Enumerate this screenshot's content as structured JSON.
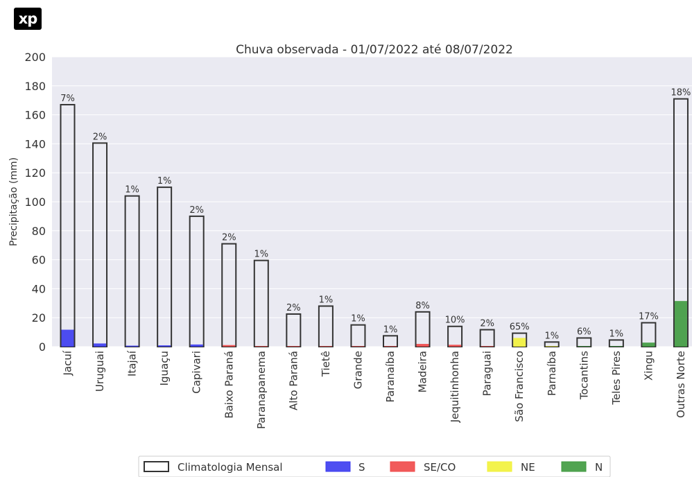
{
  "logo": {
    "text": "xp",
    "icon": "xp-logo-icon"
  },
  "chart_data": {
    "type": "bar",
    "title": "Chuva observada - 01/07/2022 até 08/07/2022",
    "xlabel": "",
    "ylabel": "Precipitação (mm)",
    "ylim": [
      0,
      200
    ],
    "yticks": [
      0,
      20,
      40,
      60,
      80,
      100,
      120,
      140,
      160,
      180,
      200
    ],
    "grid": true,
    "legend_position": "bottom",
    "categories": [
      "Jacuí",
      "Uruguai",
      "Itajaí",
      "Iguaçu",
      "Capivari",
      "Baixo Paraná",
      "Paranapanema",
      "Alto Paraná",
      "Tietê",
      "Grande",
      "Paranaíba",
      "Madeira",
      "Jequitinhonha",
      "Paraguai",
      "São Francisco",
      "Parnaíba",
      "Tocantins",
      "Teles Pires",
      "Xingu",
      "Outras Norte"
    ],
    "climatologia": [
      167,
      140.5,
      104,
      110,
      90,
      71,
      59.5,
      22.5,
      28,
      15,
      7.5,
      24,
      14,
      11.7,
      9.3,
      3.2,
      6,
      4.6,
      16.5,
      171
    ],
    "observed": [
      11.7,
      2.2,
      0.7,
      0.9,
      1.5,
      1.1,
      0.4,
      0.4,
      0.2,
      0.2,
      0.1,
      1.9,
      1.3,
      0.2,
      6,
      0.03,
      0.4,
      0.05,
      2.8,
      31.5
    ],
    "region": [
      "S",
      "S",
      "S",
      "S",
      "S",
      "SE/CO",
      "SE/CO",
      "SE/CO",
      "SE/CO",
      "SE/CO",
      "SE/CO",
      "SE/CO",
      "SE/CO",
      "SE/CO",
      "NE",
      "NE",
      "N",
      "N",
      "N",
      "N"
    ],
    "percent_labels": [
      "7%",
      "2%",
      "1%",
      "1%",
      "2%",
      "2%",
      "1%",
      "2%",
      "1%",
      "1%",
      "1%",
      "8%",
      "10%",
      "2%",
      "65%",
      "1%",
      "6%",
      "1%",
      "17%",
      "18%"
    ],
    "legend": [
      {
        "name": "Climatologia Mensal",
        "color": "#ffffff",
        "edge": "#333333"
      },
      {
        "name": "S",
        "color": "#3b3bef"
      },
      {
        "name": "SE/CO",
        "color": "#f04848"
      },
      {
        "name": "NE",
        "color": "#f2f23a"
      },
      {
        "name": "N",
        "color": "#3e9a3e"
      }
    ],
    "region_colors": {
      "S": "#3b3bef",
      "SE/CO": "#f04848",
      "NE": "#f2f23a",
      "N": "#3e9a3e"
    },
    "plot_background": "#eaeaf2"
  }
}
